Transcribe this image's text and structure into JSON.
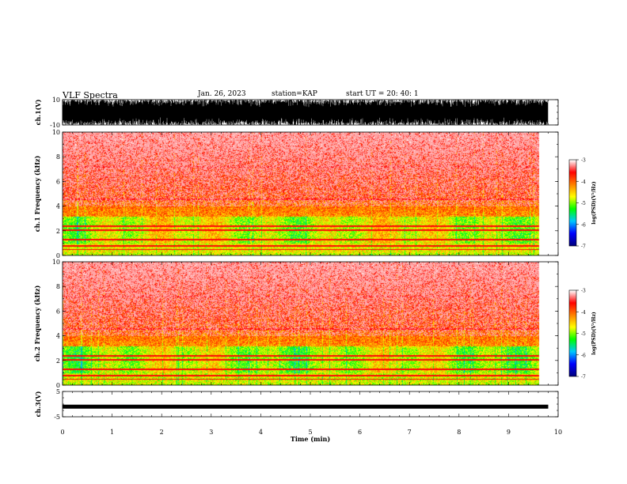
{
  "header": {
    "title": "VLF Spectra",
    "date": "Jan. 26, 2023",
    "station": "station=KAP",
    "start": "start UT =  20: 40: 1"
  },
  "chart_data": [
    {
      "type": "line",
      "panel": "ch1-waveform",
      "ylabel": "ch.1(V)",
      "ylim": [
        -10,
        10
      ],
      "yticks": [
        10,
        -10
      ],
      "xlim": [
        0,
        10
      ],
      "description": "dense saturated waveform between -10 and 10 V, ending at ~9.8 min"
    },
    {
      "type": "heatmap",
      "panel": "ch1-spectrogram",
      "ylabel": "ch.1 Frequency (kHz)",
      "ylim": [
        0,
        10
      ],
      "yticks": [
        0,
        2,
        4,
        6,
        8,
        10
      ],
      "xlim": [
        0,
        10
      ],
      "data_end_min": 9.8,
      "colorbar": {
        "label": "log(PSD)(V²/Hz)",
        "min": -7,
        "max": -3,
        "ticks": [
          -3,
          -4,
          -5,
          -6,
          -7
        ]
      }
    },
    {
      "type": "heatmap",
      "panel": "ch2-spectrogram",
      "ylabel": "ch.2 Frequency (kHz)",
      "ylim": [
        0,
        10
      ],
      "yticks": [
        0,
        2,
        4,
        6,
        8,
        10
      ],
      "xlim": [
        0,
        10
      ],
      "data_end_min": 9.8,
      "colorbar": {
        "label": "log(PSD)(V²/Hz)",
        "min": -7,
        "max": -3,
        "ticks": [
          -3,
          -4,
          -5,
          -6,
          -7
        ]
      }
    },
    {
      "type": "line",
      "panel": "ch3-waveform",
      "ylabel": "ch.3(V)",
      "ylim": [
        -5,
        5
      ],
      "yticks": [
        5,
        -5
      ],
      "xlim": [
        0,
        10
      ],
      "value_level": -1,
      "xlabel": "Time (min)",
      "xticks": [
        0,
        1,
        2,
        3,
        4,
        5,
        6,
        7,
        8,
        9,
        10
      ]
    }
  ],
  "colors": {
    "colormap": [
      "#000080",
      "#0000ff",
      "#00c8ff",
      "#00ff00",
      "#ffff00",
      "#ff8000",
      "#ff0000",
      "#ffffff"
    ]
  }
}
